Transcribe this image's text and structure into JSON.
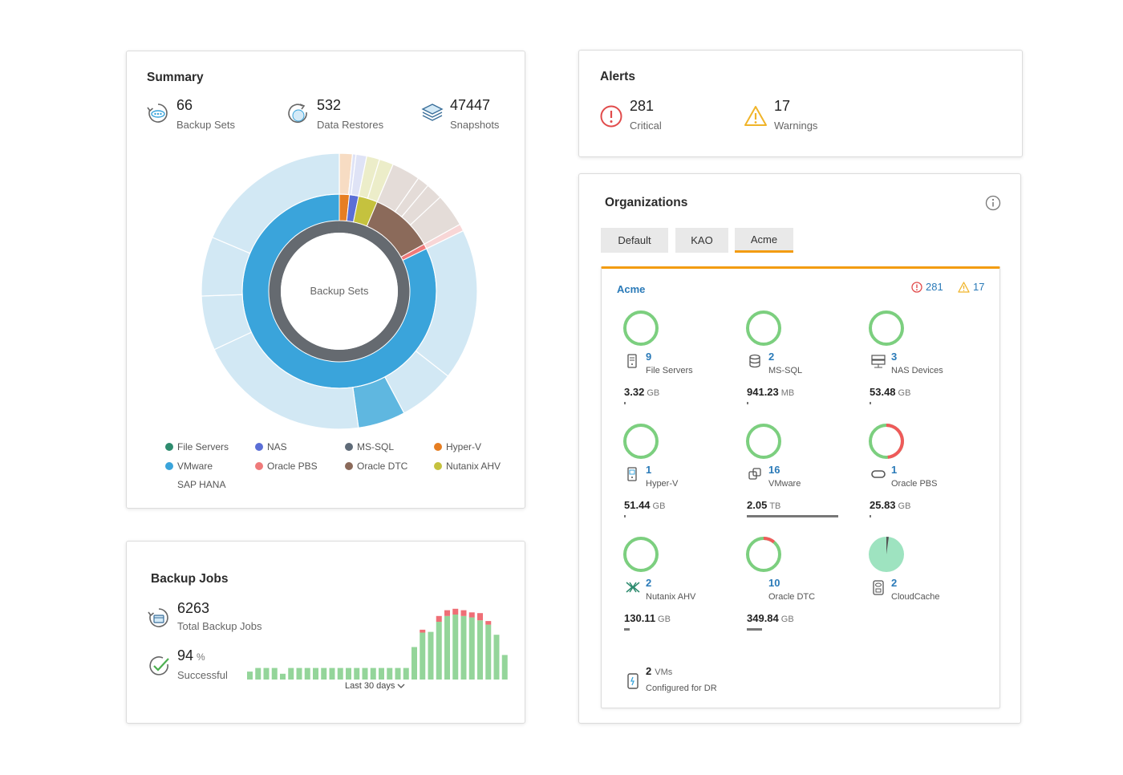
{
  "summary": {
    "title": "Summary",
    "stats": [
      {
        "value": "66",
        "label": "Backup Sets",
        "icon": "backup-sets-icon"
      },
      {
        "value": "532",
        "label": "Data Restores",
        "icon": "data-restores-icon"
      },
      {
        "value": "47447",
        "label": "Snapshots",
        "icon": "snapshots-icon"
      }
    ],
    "donut_center": "Backup Sets",
    "legend": [
      {
        "label": "File Servers",
        "color": "#2e8b6e"
      },
      {
        "label": "NAS",
        "color": "#5b6fd6"
      },
      {
        "label": "MS-SQL",
        "color": "#5f6b78"
      },
      {
        "label": "Hyper-V",
        "color": "#e67e22"
      },
      {
        "label": "VMware",
        "color": "#3aa4db"
      },
      {
        "label": "Oracle PBS",
        "color": "#ef7a7a"
      },
      {
        "label": "Oracle DTC",
        "color": "#8b6a5a"
      },
      {
        "label": "Nutanix AHV",
        "color": "#c5c23e"
      },
      {
        "label": "SAP HANA",
        "color": ""
      }
    ]
  },
  "alerts": {
    "title": "Alerts",
    "critical": {
      "value": "281",
      "label": "Critical",
      "color": "#e14b4b"
    },
    "warnings": {
      "value": "17",
      "label": "Warnings",
      "color": "#f0b429"
    }
  },
  "backup_jobs": {
    "title": "Backup Jobs",
    "total": {
      "value": "6263",
      "label": "Total Backup Jobs"
    },
    "success": {
      "value": "94",
      "unit": "%",
      "label": "Successful"
    },
    "range_label": "Last 30 days",
    "bars": [
      {
        "ok": 0.11,
        "fail": 0
      },
      {
        "ok": 0.16,
        "fail": 0
      },
      {
        "ok": 0.16,
        "fail": 0
      },
      {
        "ok": 0.16,
        "fail": 0
      },
      {
        "ok": 0.08,
        "fail": 0
      },
      {
        "ok": 0.16,
        "fail": 0
      },
      {
        "ok": 0.16,
        "fail": 0
      },
      {
        "ok": 0.16,
        "fail": 0
      },
      {
        "ok": 0.16,
        "fail": 0
      },
      {
        "ok": 0.16,
        "fail": 0
      },
      {
        "ok": 0.16,
        "fail": 0
      },
      {
        "ok": 0.16,
        "fail": 0
      },
      {
        "ok": 0.16,
        "fail": 0
      },
      {
        "ok": 0.16,
        "fail": 0
      },
      {
        "ok": 0.16,
        "fail": 0
      },
      {
        "ok": 0.16,
        "fail": 0
      },
      {
        "ok": 0.16,
        "fail": 0
      },
      {
        "ok": 0.16,
        "fail": 0
      },
      {
        "ok": 0.16,
        "fail": 0
      },
      {
        "ok": 0.16,
        "fail": 0
      },
      {
        "ok": 0.45,
        "fail": 0
      },
      {
        "ok": 0.65,
        "fail": 0.04
      },
      {
        "ok": 0.66,
        "fail": 0
      },
      {
        "ok": 0.8,
        "fail": 0.08
      },
      {
        "ok": 0.88,
        "fail": 0.08
      },
      {
        "ok": 0.9,
        "fail": 0.08
      },
      {
        "ok": 0.88,
        "fail": 0.08
      },
      {
        "ok": 0.86,
        "fail": 0.07
      },
      {
        "ok": 0.82,
        "fail": 0.1
      },
      {
        "ok": 0.76,
        "fail": 0.05
      },
      {
        "ok": 0.62,
        "fail": 0
      },
      {
        "ok": 0.34,
        "fail": 0
      }
    ]
  },
  "organizations": {
    "title": "Organizations",
    "tabs": [
      "Default",
      "KAO",
      "Acme"
    ],
    "active_tab": "Acme",
    "panel": {
      "name": "Acme",
      "critical_count": "281",
      "warning_count": "17",
      "items": [
        {
          "count": "9",
          "name": "File Servers",
          "size": "3.32",
          "unit": "GB",
          "icon": "file-server-icon",
          "ring": "green",
          "usage": 0.0
        },
        {
          "count": "2",
          "name": "MS-SQL",
          "size": "941.23",
          "unit": "MB",
          "icon": "database-icon",
          "ring": "green",
          "usage": 0.0
        },
        {
          "count": "3",
          "name": "NAS Devices",
          "size": "53.48",
          "unit": "GB",
          "icon": "nas-icon",
          "ring": "green",
          "usage": 0.02
        },
        {
          "count": "1",
          "name": "Hyper-V",
          "size": "51.44",
          "unit": "GB",
          "icon": "hyperv-icon",
          "ring": "green",
          "usage": 0.02
        },
        {
          "count": "16",
          "name": "VMware",
          "size": "2.05",
          "unit": "TB",
          "icon": "vmware-icon",
          "ring": "green",
          "usage": 1.0
        },
        {
          "count": "1",
          "name": "Oracle PBS",
          "size": "25.83",
          "unit": "GB",
          "icon": "oracle-icon",
          "ring": "half-red",
          "usage": 0.0
        },
        {
          "count": "2",
          "name": "Nutanix AHV",
          "size": "130.11",
          "unit": "GB",
          "icon": "nutanix-icon",
          "ring": "green",
          "usage": 0.06
        },
        {
          "count": "10",
          "name": "Oracle DTC",
          "size": "349.84",
          "unit": "GB",
          "icon": "oracle-dtc-icon",
          "ring": "green-red",
          "usage": 0.17
        },
        {
          "count": "2",
          "name": "CloudCache",
          "size": "",
          "unit": "",
          "icon": "cloudcache-icon",
          "ring": "pie",
          "usage": 0.0
        }
      ],
      "dr": {
        "count": "2",
        "unit": "VMs",
        "label": "Configured for DR"
      }
    }
  }
}
